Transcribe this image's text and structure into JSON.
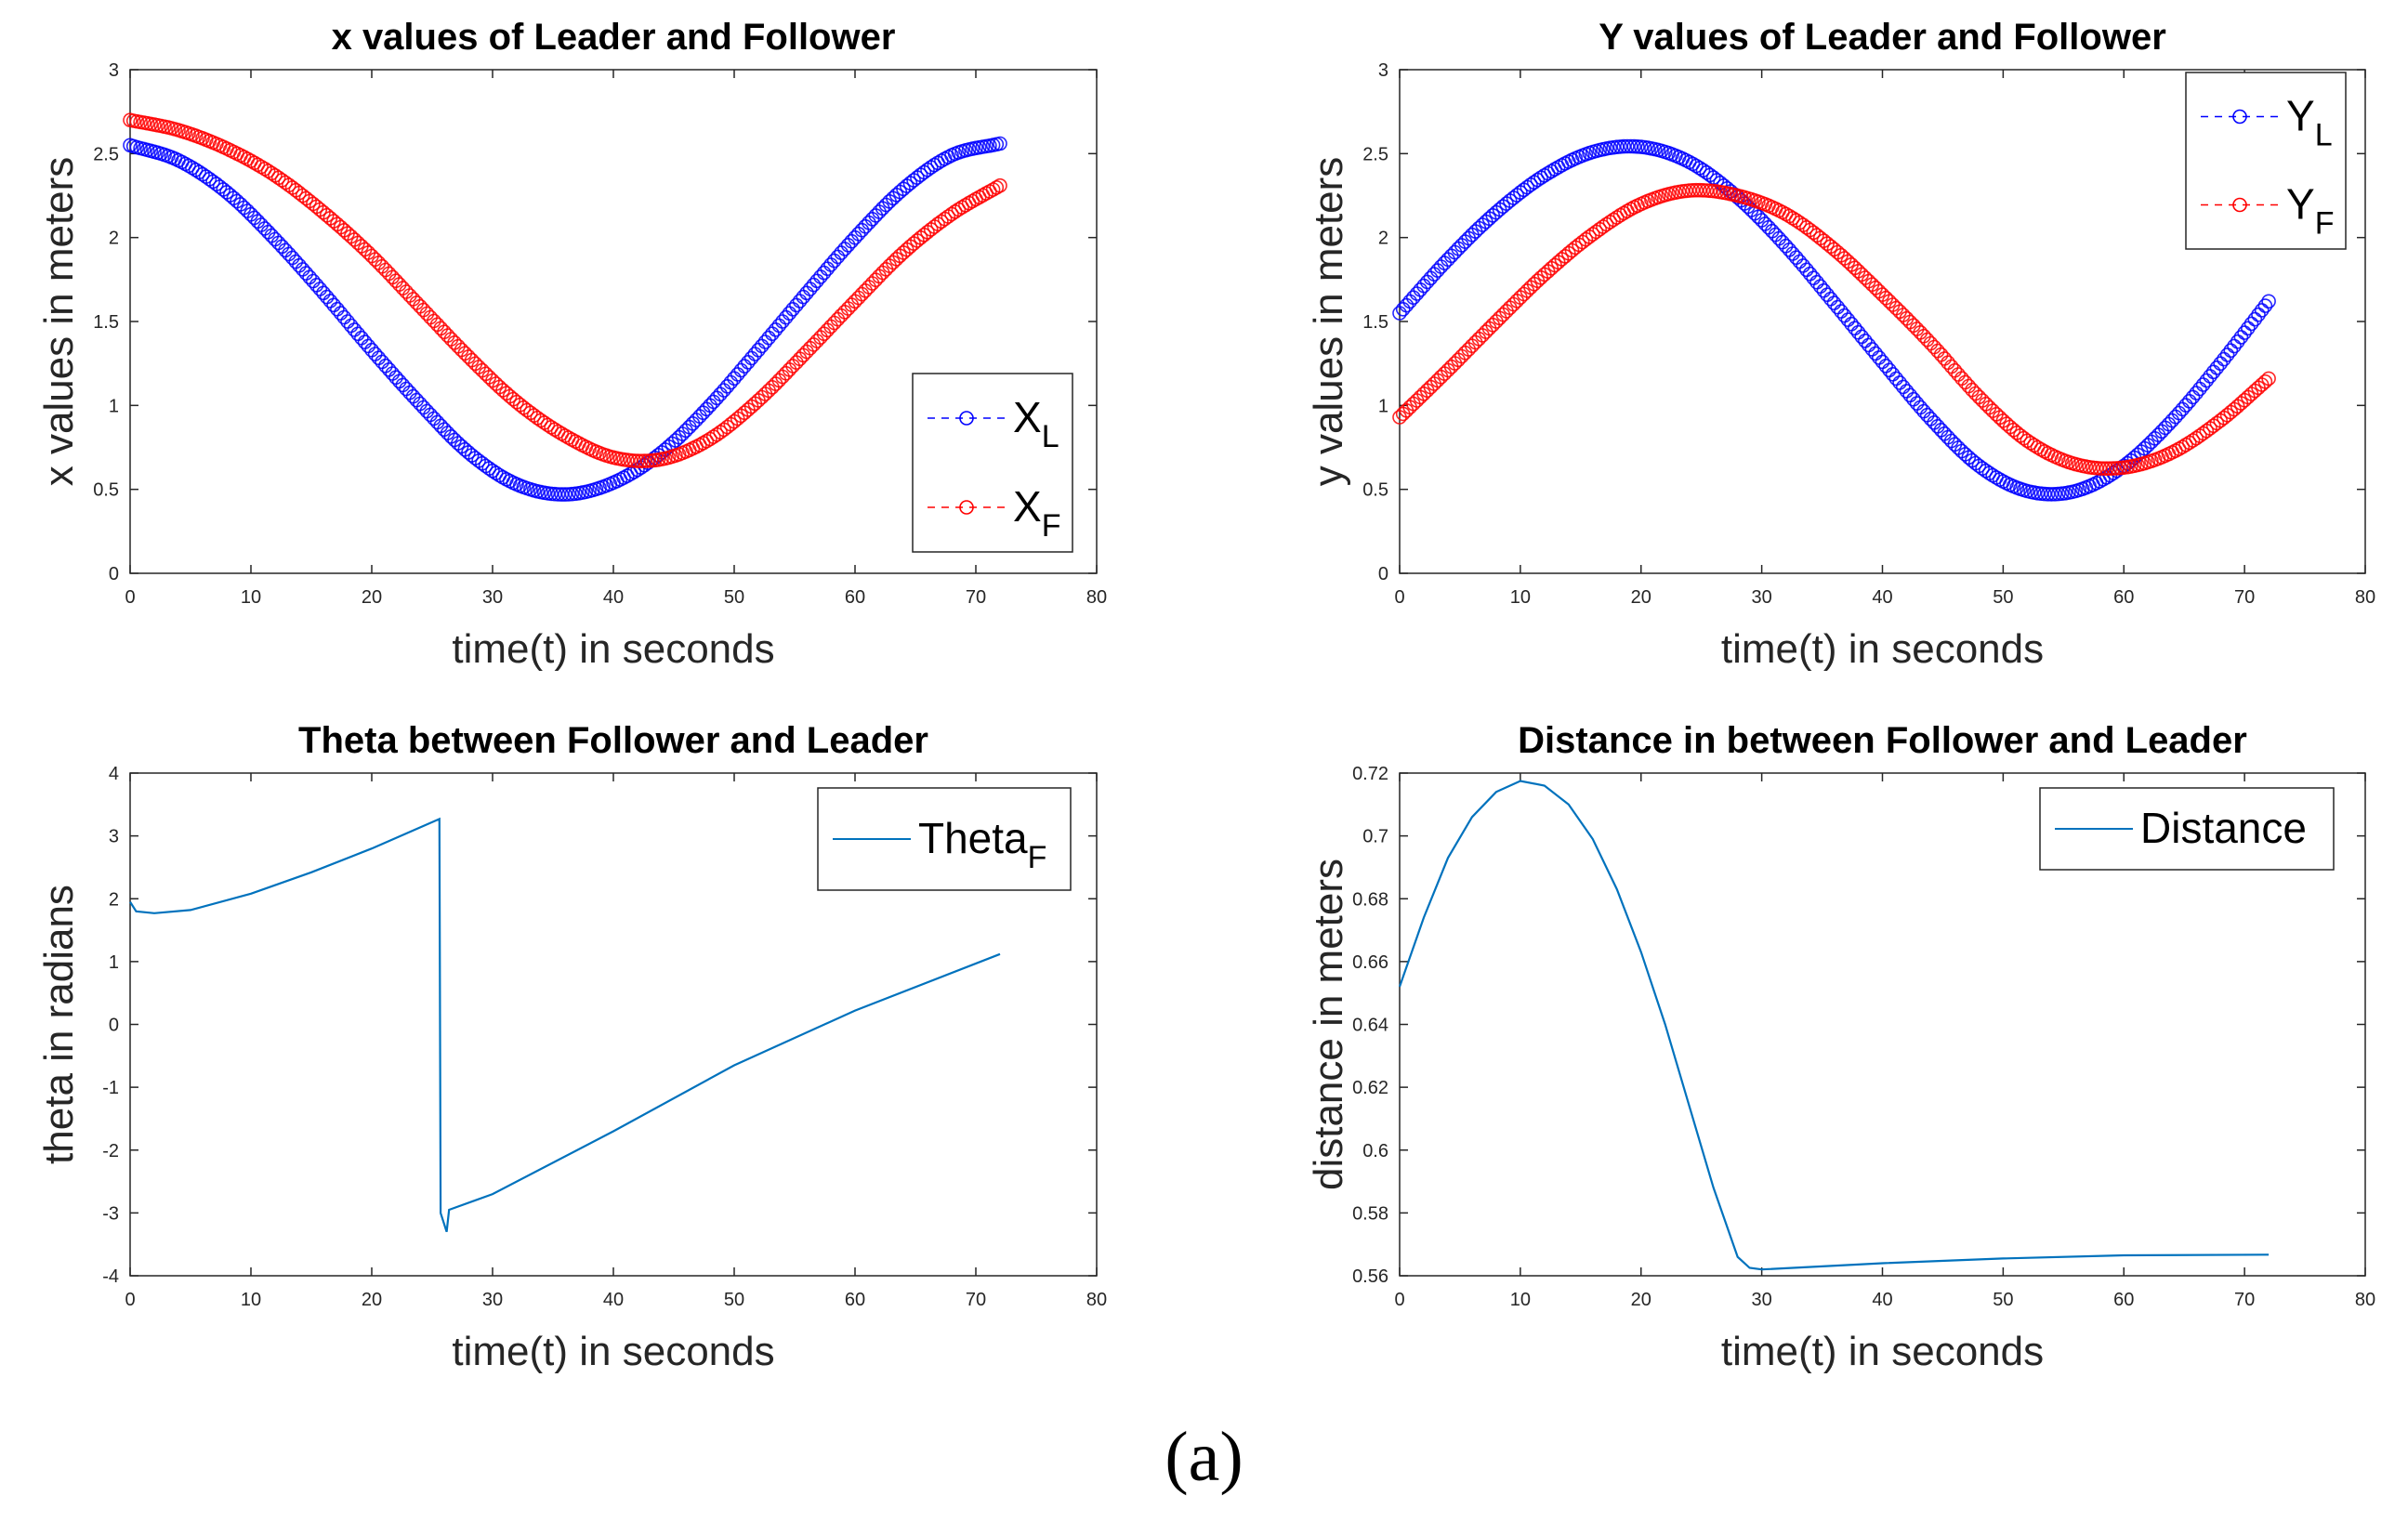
{
  "caption": "(a)",
  "colors": {
    "leader": "#0000ff",
    "follower": "#ff0000",
    "single": "#0072bd"
  },
  "chart_data": [
    {
      "type": "scatter",
      "title": "x values of Leader and Follower",
      "xlabel": "time(t) in seconds",
      "ylabel": "x values in meters",
      "xlim": [
        0,
        80
      ],
      "ylim": [
        0,
        3
      ],
      "xticks": [
        0,
        10,
        20,
        30,
        40,
        50,
        60,
        70,
        80
      ],
      "yticks": [
        0,
        0.5,
        1,
        1.5,
        2,
        2.5,
        3
      ],
      "legend_position": "bottom-right",
      "series": [
        {
          "name": "X",
          "sub": "L",
          "color": "#0000ff",
          "marker": "circle",
          "x": [
            0,
            4,
            8,
            12,
            16,
            20,
            24,
            28,
            32,
            36,
            40,
            44,
            48,
            52,
            56,
            60,
            64,
            68,
            72
          ],
          "values": [
            2.55,
            2.46,
            2.27,
            1.99,
            1.67,
            1.33,
            1.01,
            0.72,
            0.53,
            0.47,
            0.54,
            0.72,
            1.0,
            1.33,
            1.67,
            2.0,
            2.29,
            2.49,
            2.56
          ]
        },
        {
          "name": "X",
          "sub": "F",
          "color": "#ff0000",
          "marker": "circle",
          "x": [
            0,
            4,
            8,
            12,
            16,
            20,
            24,
            28,
            32,
            36,
            40,
            44,
            48,
            52,
            56,
            60,
            64,
            68,
            72
          ],
          "values": [
            2.7,
            2.64,
            2.53,
            2.37,
            2.15,
            1.89,
            1.59,
            1.29,
            1.02,
            0.82,
            0.69,
            0.68,
            0.8,
            1.03,
            1.32,
            1.62,
            1.91,
            2.14,
            2.31
          ]
        }
      ]
    },
    {
      "type": "scatter",
      "title": "Y values of Leader and Follower",
      "xlabel": "time(t) in seconds",
      "ylabel": "y values in meters",
      "xlim": [
        0,
        80
      ],
      "ylim": [
        0,
        3
      ],
      "xticks": [
        0,
        10,
        20,
        30,
        40,
        50,
        60,
        70,
        80
      ],
      "yticks": [
        0,
        0.5,
        1,
        1.5,
        2,
        2.5,
        3
      ],
      "legend_position": "top-right",
      "series": [
        {
          "name": "Y",
          "sub": "L",
          "color": "#0000ff",
          "marker": "circle",
          "x": [
            0,
            4,
            8,
            12,
            16,
            20,
            24,
            28,
            32,
            36,
            40,
            44,
            48,
            52,
            56,
            60,
            64,
            68,
            72
          ],
          "values": [
            1.55,
            1.87,
            2.15,
            2.37,
            2.51,
            2.54,
            2.45,
            2.24,
            1.95,
            1.61,
            1.26,
            0.92,
            0.64,
            0.49,
            0.49,
            0.64,
            0.91,
            1.25,
            1.62
          ]
        },
        {
          "name": "Y",
          "sub": "F",
          "color": "#ff0000",
          "marker": "circle",
          "x": [
            0,
            4,
            8,
            12,
            16,
            20,
            24,
            28,
            32,
            36,
            40,
            44,
            48,
            52,
            56,
            60,
            64,
            68,
            72
          ],
          "values": [
            0.93,
            1.21,
            1.5,
            1.78,
            2.02,
            2.2,
            2.28,
            2.25,
            2.14,
            1.93,
            1.66,
            1.37,
            1.05,
            0.79,
            0.65,
            0.63,
            0.72,
            0.91,
            1.16
          ]
        }
      ]
    },
    {
      "type": "line",
      "title": "Theta between Follower and Leader",
      "xlabel": "time(t) in seconds",
      "ylabel": "theta in radians",
      "xlim": [
        0,
        80
      ],
      "ylim": [
        -4,
        4
      ],
      "xticks": [
        0,
        10,
        20,
        30,
        40,
        50,
        60,
        70,
        80
      ],
      "yticks": [
        -4,
        -3,
        -2,
        -1,
        0,
        1,
        2,
        3,
        4
      ],
      "legend_position": "top-right",
      "series": [
        {
          "name": "Theta",
          "sub": "F",
          "color": "#0072bd",
          "x": [
            0,
            0.5,
            2,
            5,
            10,
            15,
            20,
            25.6,
            25.7,
            26.2,
            26.4,
            30,
            40,
            50,
            60,
            72
          ],
          "values": [
            1.95,
            1.8,
            1.77,
            1.82,
            2.08,
            2.42,
            2.8,
            3.27,
            -3.0,
            -3.3,
            -2.95,
            -2.7,
            -1.7,
            -0.65,
            0.22,
            1.12
          ]
        }
      ]
    },
    {
      "type": "line",
      "title": "Distance in between Follower and Leader",
      "xlabel": "time(t) in seconds",
      "ylabel": "distance in meters",
      "xlim": [
        0,
        80
      ],
      "ylim": [
        0.56,
        0.72
      ],
      "xticks": [
        0,
        10,
        20,
        30,
        40,
        50,
        60,
        70,
        80
      ],
      "yticks": [
        0.56,
        0.58,
        0.6,
        0.62,
        0.64,
        0.66,
        0.68,
        0.7,
        0.72
      ],
      "legend_position": "top-right",
      "series": [
        {
          "name": "Distance",
          "sub": "",
          "color": "#0072bd",
          "x": [
            0,
            2,
            4,
            6,
            8,
            10,
            12,
            14,
            16,
            18,
            20,
            22,
            24,
            26,
            28,
            29,
            30,
            35,
            40,
            50,
            60,
            72
          ],
          "values": [
            0.652,
            0.674,
            0.693,
            0.706,
            0.714,
            0.7175,
            0.716,
            0.71,
            0.699,
            0.683,
            0.663,
            0.64,
            0.614,
            0.588,
            0.566,
            0.5625,
            0.562,
            0.563,
            0.564,
            0.5655,
            0.5665,
            0.5667
          ]
        }
      ]
    }
  ]
}
